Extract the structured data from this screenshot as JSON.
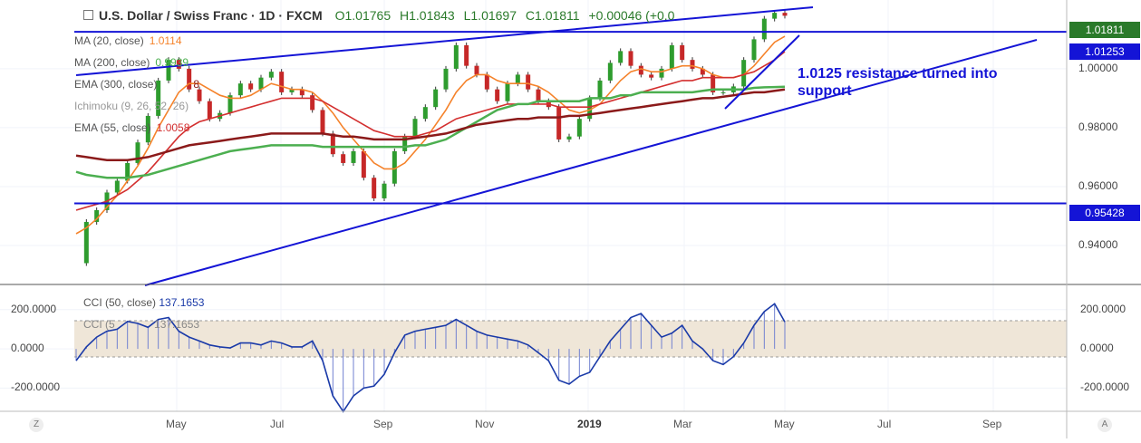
{
  "header": {
    "title": "U.S. Dollar / Swiss Franc · 1D · FXCM",
    "open": "O1.01765",
    "high": "H1.01843",
    "low": "L1.01697",
    "close": "C1.01811",
    "change": "+0.00046 (+0.0",
    "menu_icon": "square-icon"
  },
  "indicators": [
    {
      "label": "MA (20, close)",
      "value": "1.0114",
      "color": "#f5822a"
    },
    {
      "label": "MA (200, close)",
      "value": "0.9939",
      "color": "#4caf50"
    },
    {
      "label": "EMA (300, close)",
      "value": "8",
      "color": "#8b1a1a"
    },
    {
      "label": "Ichimoku (9, 26, 52, 26)",
      "value": "",
      "color": "#aaaaaa"
    },
    {
      "label": "EMA (55, close)",
      "value": "1.0058",
      "color": "#d32f2f"
    }
  ],
  "cci": {
    "label1": "CCI (50, close)",
    "value1": "137.1653",
    "label2": "CCI (5",
    "value2": "137.1653"
  },
  "annotation": "1.0125 resistance turned into support",
  "price_tags": [
    {
      "value": "1.01811",
      "bg": "#2a7a2a"
    },
    {
      "value": "1.01253",
      "bg": "#1414d6"
    },
    {
      "value": "0.95428",
      "bg": "#1414d6"
    }
  ],
  "corner_left": "Z",
  "corner_right": "A",
  "chart_data": {
    "type": "line",
    "title": "U.S. Dollar / Swiss Franc, 1D, FXCM",
    "x_ticks": [
      "May",
      "Jul",
      "Sep",
      "Nov",
      "2019",
      "Mar",
      "May",
      "Jul",
      "Sep"
    ],
    "y_ticks": [
      "1.00000",
      "0.98000",
      "0.96000",
      "0.94000"
    ],
    "ylim": [
      0.928,
      1.0215
    ],
    "cci_ticks": [
      "200.0000",
      "0.0000",
      "-200.0000"
    ],
    "cci_lim": [
      -300,
      310
    ],
    "series": [
      {
        "name": "USD/CHF close",
        "color": "#1f7a1f",
        "values": [
          0.934,
          0.948,
          0.952,
          0.958,
          0.962,
          0.968,
          0.975,
          0.984,
          0.996,
          1.003,
          1.0,
          0.993,
          0.989,
          0.983,
          0.985,
          0.991,
          0.995,
          0.993,
          0.997,
          0.999,
          0.992,
          0.993,
          0.991,
          0.986,
          0.978,
          0.971,
          0.968,
          0.972,
          0.963,
          0.956,
          0.961,
          0.972,
          0.977,
          0.983,
          0.987,
          0.993,
          1.0,
          1.008,
          1.001,
          0.998,
          0.993,
          0.989,
          0.995,
          0.998,
          0.993,
          0.989,
          0.987,
          0.976,
          0.977,
          0.983,
          0.99,
          0.996,
          1.002,
          1.006,
          1.001,
          0.998,
          0.997,
          1.0,
          1.008,
          1.003,
          1.0,
          0.998,
          0.992,
          0.992,
          0.994,
          1.003,
          1.01,
          1.017,
          1.019,
          1.018
        ]
      },
      {
        "name": "MA (20, close)",
        "color": "#f5822a",
        "values": [
          0.944,
          0.946,
          0.949,
          0.953,
          0.957,
          0.962,
          0.967,
          0.973,
          0.98,
          0.986,
          0.992,
          0.995,
          0.995,
          0.993,
          0.991,
          0.99,
          0.99,
          0.991,
          0.993,
          0.995,
          0.994,
          0.993,
          0.993,
          0.992,
          0.989,
          0.985,
          0.98,
          0.976,
          0.972,
          0.968,
          0.966,
          0.966,
          0.968,
          0.972,
          0.976,
          0.981,
          0.986,
          0.992,
          0.996,
          0.998,
          0.998,
          0.996,
          0.995,
          0.995,
          0.995,
          0.994,
          0.992,
          0.989,
          0.986,
          0.985,
          0.986,
          0.988,
          0.992,
          0.996,
          0.999,
          1.0,
          0.999,
          0.999,
          1.0,
          1.001,
          1.001,
          1.0,
          0.998,
          0.997,
          0.997,
          0.998,
          1.001,
          1.005,
          1.009,
          1.011
        ]
      },
      {
        "name": "EMA (55, close)",
        "color": "#d32f2f",
        "values": [
          0.952,
          0.953,
          0.954,
          0.955,
          0.957,
          0.959,
          0.962,
          0.965,
          0.969,
          0.973,
          0.977,
          0.98,
          0.982,
          0.983,
          0.984,
          0.985,
          0.986,
          0.987,
          0.988,
          0.989,
          0.99,
          0.99,
          0.99,
          0.99,
          0.989,
          0.987,
          0.985,
          0.983,
          0.981,
          0.979,
          0.978,
          0.977,
          0.977,
          0.977,
          0.978,
          0.979,
          0.981,
          0.983,
          0.984,
          0.985,
          0.986,
          0.987,
          0.988,
          0.988,
          0.988,
          0.988,
          0.988,
          0.987,
          0.987,
          0.987,
          0.987,
          0.988,
          0.989,
          0.99,
          0.991,
          0.992,
          0.993,
          0.994,
          0.995,
          0.996,
          0.996,
          0.997,
          0.997,
          0.997,
          0.997,
          0.998,
          0.999,
          1.001,
          1.003,
          1.0058
        ]
      },
      {
        "name": "MA (200, close)",
        "color": "#4caf50",
        "values": [
          0.965,
          0.964,
          0.9635,
          0.963,
          0.963,
          0.963,
          0.9635,
          0.964,
          0.965,
          0.966,
          0.967,
          0.968,
          0.969,
          0.97,
          0.971,
          0.972,
          0.9725,
          0.973,
          0.9735,
          0.974,
          0.974,
          0.974,
          0.974,
          0.974,
          0.9735,
          0.9735,
          0.9735,
          0.9735,
          0.9735,
          0.9735,
          0.9735,
          0.9735,
          0.9735,
          0.974,
          0.974,
          0.975,
          0.976,
          0.978,
          0.98,
          0.982,
          0.984,
          0.986,
          0.987,
          0.988,
          0.988,
          0.989,
          0.989,
          0.989,
          0.989,
          0.989,
          0.99,
          0.99,
          0.99,
          0.991,
          0.991,
          0.992,
          0.992,
          0.992,
          0.992,
          0.992,
          0.992,
          0.9925,
          0.993,
          0.993,
          0.993,
          0.993,
          0.9935,
          0.9937,
          0.9938,
          0.9939
        ]
      },
      {
        "name": "EMA (300, close)",
        "color": "#8b1a1a",
        "values": [
          0.9705,
          0.97,
          0.9695,
          0.969,
          0.969,
          0.969,
          0.9695,
          0.97,
          0.971,
          0.972,
          0.973,
          0.974,
          0.9745,
          0.975,
          0.9755,
          0.976,
          0.9765,
          0.977,
          0.9775,
          0.978,
          0.978,
          0.978,
          0.978,
          0.978,
          0.978,
          0.9775,
          0.977,
          0.977,
          0.9765,
          0.976,
          0.976,
          0.976,
          0.976,
          0.9765,
          0.977,
          0.9775,
          0.978,
          0.979,
          0.98,
          0.981,
          0.9815,
          0.982,
          0.9825,
          0.983,
          0.983,
          0.9835,
          0.9835,
          0.9835,
          0.984,
          0.984,
          0.9845,
          0.985,
          0.9855,
          0.986,
          0.9865,
          0.987,
          0.9875,
          0.988,
          0.9885,
          0.989,
          0.9895,
          0.99,
          0.99,
          0.9905,
          0.991,
          0.9915,
          0.992,
          0.992,
          0.9925,
          0.993
        ]
      },
      {
        "name": "CCI (50, close)",
        "color": "#1a3aa8",
        "values": [
          -60,
          10,
          60,
          90,
          100,
          140,
          130,
          110,
          150,
          160,
          90,
          60,
          40,
          20,
          10,
          5,
          30,
          30,
          20,
          40,
          30,
          10,
          10,
          40,
          -60,
          -240,
          -320,
          -240,
          -200,
          -190,
          -130,
          -20,
          70,
          90,
          100,
          110,
          120,
          150,
          120,
          90,
          70,
          60,
          50,
          40,
          20,
          -20,
          -60,
          -160,
          -180,
          -140,
          -120,
          -40,
          40,
          100,
          160,
          180,
          120,
          60,
          80,
          120,
          40,
          0,
          -60,
          -80,
          -40,
          30,
          120,
          190,
          230,
          137
        ]
      }
    ],
    "levels": [
      {
        "value": 1.01253,
        "label": "1.01253"
      },
      {
        "value": 0.95428,
        "label": "0.95428"
      }
    ]
  }
}
